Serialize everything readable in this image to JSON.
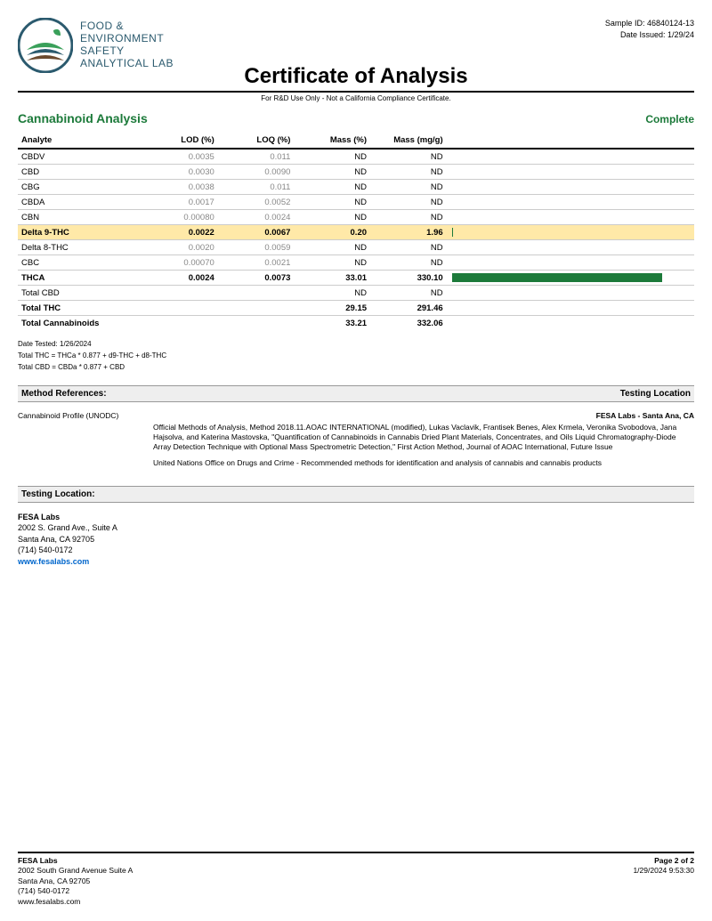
{
  "header": {
    "logo_lines": [
      "FOOD &",
      "ENVIRONMENT",
      "SAFETY",
      "ANALYTICAL LAB"
    ],
    "sample_id_label": "Sample ID: 46840124-13",
    "date_issued_label": "Date Issued: 1/29/24",
    "title": "Certificate of Analysis",
    "subtitle": "For R&D Use Only - Not a California Compliance Certificate."
  },
  "section": {
    "title": "Cannabinoid Analysis",
    "status": "Complete"
  },
  "table": {
    "headers": [
      "Analyte",
      "LOD (%)",
      "LOQ (%)",
      "Mass (%)",
      "Mass (mg/g)"
    ],
    "rows": [
      {
        "analyte": "CBDV",
        "lod": "0.0035",
        "loq": "0.011",
        "masspct": "ND",
        "massmg": "ND",
        "bar": 0,
        "bold": false,
        "hl": false,
        "grey": true
      },
      {
        "analyte": "CBD",
        "lod": "0.0030",
        "loq": "0.0090",
        "masspct": "ND",
        "massmg": "ND",
        "bar": 0,
        "bold": false,
        "hl": false,
        "grey": true
      },
      {
        "analyte": "CBG",
        "lod": "0.0038",
        "loq": "0.011",
        "masspct": "ND",
        "massmg": "ND",
        "bar": 0,
        "bold": false,
        "hl": false,
        "grey": true
      },
      {
        "analyte": "CBDA",
        "lod": "0.0017",
        "loq": "0.0052",
        "masspct": "ND",
        "massmg": "ND",
        "bar": 0,
        "bold": false,
        "hl": false,
        "grey": true
      },
      {
        "analyte": "CBN",
        "lod": "0.00080",
        "loq": "0.0024",
        "masspct": "ND",
        "massmg": "ND",
        "bar": 0,
        "bold": false,
        "hl": false,
        "grey": true
      },
      {
        "analyte": "Delta 9-THC",
        "lod": "0.0022",
        "loq": "0.0067",
        "masspct": "0.20",
        "massmg": "1.96",
        "bar": 0.6,
        "bold": true,
        "hl": true,
        "grey": false
      },
      {
        "analyte": "Delta 8-THC",
        "lod": "0.0020",
        "loq": "0.0059",
        "masspct": "ND",
        "massmg": "ND",
        "bar": 0,
        "bold": false,
        "hl": false,
        "grey": true
      },
      {
        "analyte": "CBC",
        "lod": "0.00070",
        "loq": "0.0021",
        "masspct": "ND",
        "massmg": "ND",
        "bar": 0,
        "bold": false,
        "hl": false,
        "grey": true
      },
      {
        "analyte": "THCA",
        "lod": "0.0024",
        "loq": "0.0073",
        "masspct": "33.01",
        "massmg": "330.10",
        "bar": 88,
        "bold": true,
        "hl": false,
        "grey": false
      },
      {
        "analyte": "Total CBD",
        "lod": "",
        "loq": "",
        "masspct": "ND",
        "massmg": "ND",
        "bar": 0,
        "bold": false,
        "hl": false,
        "grey": false
      },
      {
        "analyte": "Total THC",
        "lod": "",
        "loq": "",
        "masspct": "29.15",
        "massmg": "291.46",
        "bar": 0,
        "bold": true,
        "hl": false,
        "grey": false
      },
      {
        "analyte": "Total Cannabinoids",
        "lod": "",
        "loq": "",
        "masspct": "33.21",
        "massmg": "332.06",
        "bar": 0,
        "bold": true,
        "hl": false,
        "grey": false
      }
    ]
  },
  "notes": {
    "date_tested": "Date Tested: 1/26/2024",
    "formula1": "Total THC = THCa * 0.877 + d9-THC + d8-THC",
    "formula2": "Total CBD = CBDa * 0.877 + CBD"
  },
  "method_bar": {
    "left": "Method References:",
    "right": "Testing Location"
  },
  "method": {
    "left": "Cannabinoid Profile (UNODC)",
    "location": "FESA Labs - Santa Ana, CA",
    "p1": "Official Methods of Analysis, Method 2018.11.AOAC INTERNATIONAL (modified), Lukas Vaclavik, Frantisek Benes, Alex Krmela, Veronika Svobodova, Jana Hajsolva, and Katerina Mastovska, \"Quantification of Cannabinoids in Cannabis Dried Plant Materials, Concentrates, and Oils Liquid Chromatography-Diode Array Detection Technique with Optional Mass Spectrometric Detection,\" First Action Method, Journal of AOAC International, Future Issue",
    "p2": "United Nations Office on Drugs and Crime - Recommended methods for identification and analysis of cannabis and cannabis products"
  },
  "testing_bar": "Testing Location:",
  "testing_loc": {
    "lab": "FESA Labs",
    "addr1": "2002 S. Grand Ave., Suite A",
    "addr2": "Santa Ana, CA 92705",
    "phone": "(714) 540-0172",
    "url": "www.fesalabs.com"
  },
  "footer": {
    "lab": "FESA Labs",
    "addr1": "2002 South Grand Avenue Suite A",
    "addr2": "Santa Ana, CA 92705",
    "phone": "(714) 540-0172",
    "url": "www.fesalabs.com",
    "page": "Page 2 of 2",
    "timestamp": "1/29/2024 9:53:30"
  },
  "colors": {
    "green": "#1c7a3a",
    "highlight": "#ffe9a8",
    "link": "#0066cc"
  }
}
